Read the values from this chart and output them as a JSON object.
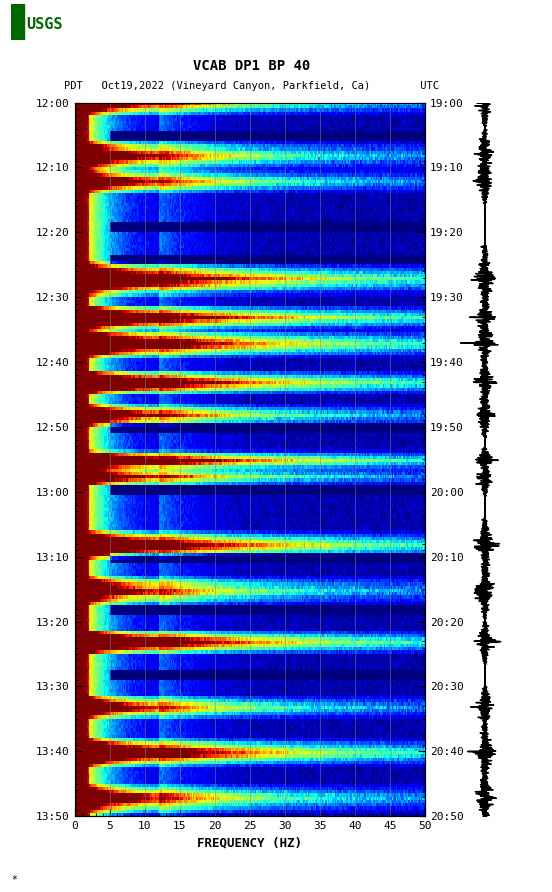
{
  "title_line1": "VCAB DP1 BP 40",
  "title_line2": "PDT   Oct19,2022 (Vineyard Canyon, Parkfield, Ca)        UTC",
  "xlabel": "FREQUENCY (HZ)",
  "ytick_pdt": [
    "12:00",
    "12:10",
    "12:20",
    "12:30",
    "12:40",
    "12:50",
    "13:00",
    "13:10",
    "13:20",
    "13:30",
    "13:40",
    "13:50"
  ],
  "ytick_utc": [
    "19:00",
    "19:10",
    "19:20",
    "19:30",
    "19:40",
    "19:50",
    "20:00",
    "20:10",
    "20:20",
    "20:30",
    "20:40",
    "20:50"
  ],
  "xticks": [
    0,
    5,
    10,
    15,
    20,
    25,
    30,
    35,
    40,
    45,
    50
  ],
  "background_color": "#ffffff",
  "spectrogram_cmap": "jet",
  "fig_width": 5.52,
  "fig_height": 8.92,
  "event_times_min": [
    0,
    8,
    12,
    27,
    33,
    37,
    43,
    48,
    55,
    58,
    68,
    75,
    83,
    93,
    100,
    107
  ],
  "event_widths": [
    3,
    4,
    3,
    5,
    3,
    4,
    3,
    3,
    2,
    2,
    4,
    4,
    3,
    3,
    4,
    4
  ],
  "waveform_color": "#000000",
  "usgs_color": "#006600"
}
